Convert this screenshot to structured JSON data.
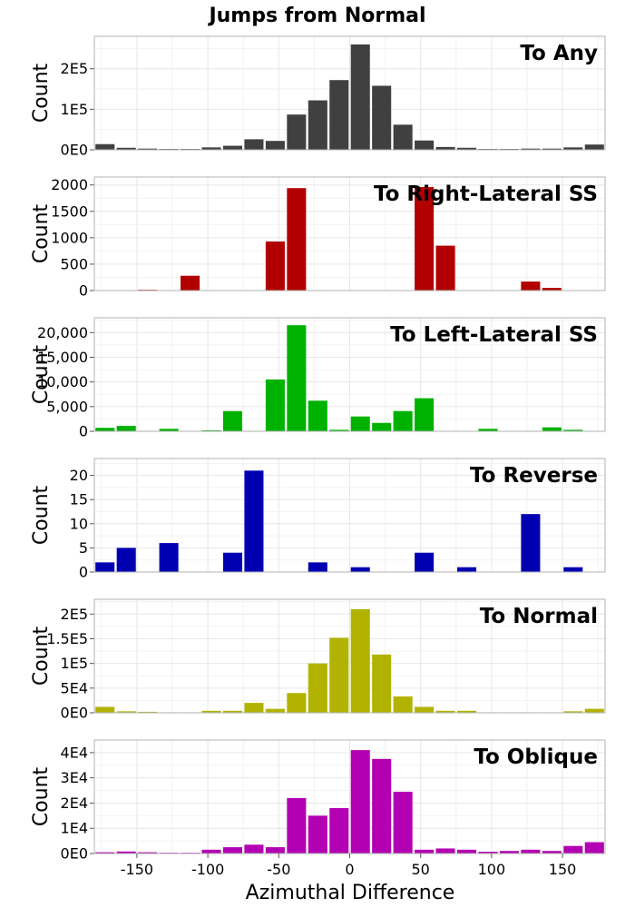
{
  "figure": {
    "title": "Jumps from Normal",
    "xlabel": "Azimuthal Difference",
    "x_ticks": [
      "-150",
      "-100",
      "-50",
      "0",
      "50",
      "100",
      "150"
    ]
  },
  "chart_data": [
    {
      "type": "bar",
      "panel_title": "To Any",
      "ylabel": "Count",
      "color": "#404040",
      "xlim": [
        -180,
        180
      ],
      "ylim": [
        0,
        280000
      ],
      "y_ticks": [
        0,
        100000,
        200000
      ],
      "y_tick_labels": [
        "0E0",
        "1E5",
        "2E5"
      ],
      "x": [
        -172.5,
        -157.5,
        -142.5,
        -127.5,
        -112.5,
        -97.5,
        -82.5,
        -67.5,
        -52.5,
        -37.5,
        -22.5,
        -7.5,
        7.5,
        22.5,
        37.5,
        52.5,
        67.5,
        82.5,
        97.5,
        112.5,
        127.5,
        142.5,
        157.5,
        172.5
      ],
      "values": [
        14000,
        5000,
        3000,
        2000,
        2000,
        6000,
        10000,
        26000,
        22000,
        87000,
        122000,
        172000,
        260000,
        158000,
        62000,
        23000,
        7000,
        5000,
        2000,
        2000,
        3000,
        3000,
        6000,
        13000
      ]
    },
    {
      "type": "bar",
      "panel_title": "To Right-Lateral SS",
      "ylabel": "Count",
      "color": "#b20000",
      "xlim": [
        -180,
        180
      ],
      "ylim": [
        0,
        2150
      ],
      "y_ticks": [
        0,
        500,
        1000,
        1500,
        2000
      ],
      "y_tick_labels": [
        "0",
        "500",
        "1000",
        "1500",
        "2000"
      ],
      "x": [
        -172.5,
        -157.5,
        -142.5,
        -127.5,
        -112.5,
        -97.5,
        -82.5,
        -67.5,
        -52.5,
        -37.5,
        -22.5,
        -7.5,
        7.5,
        22.5,
        37.5,
        52.5,
        67.5,
        82.5,
        97.5,
        112.5,
        127.5,
        142.5,
        157.5,
        172.5
      ],
      "values": [
        0,
        0,
        15,
        0,
        280,
        0,
        0,
        0,
        930,
        1940,
        0,
        0,
        0,
        0,
        0,
        1960,
        850,
        0,
        0,
        0,
        170,
        50,
        0,
        0
      ]
    },
    {
      "type": "bar",
      "panel_title": "To Left-Lateral SS",
      "ylabel": "Count",
      "color": "#00b200",
      "xlim": [
        -180,
        180
      ],
      "ylim": [
        0,
        23000
      ],
      "y_ticks": [
        0,
        5000,
        10000,
        15000,
        20000
      ],
      "y_tick_labels": [
        "0",
        "5,000",
        "10,000",
        "15,000",
        "20,000"
      ],
      "x": [
        -172.5,
        -157.5,
        -142.5,
        -127.5,
        -112.5,
        -97.5,
        -82.5,
        -67.5,
        -52.5,
        -37.5,
        -22.5,
        -7.5,
        7.5,
        22.5,
        37.5,
        52.5,
        67.5,
        82.5,
        97.5,
        112.5,
        127.5,
        142.5,
        157.5,
        172.5
      ],
      "values": [
        700,
        1100,
        100,
        500,
        0,
        200,
        4100,
        100,
        10500,
        21500,
        6200,
        300,
        3000,
        1700,
        4100,
        6700,
        0,
        0,
        500,
        0,
        100,
        800,
        300,
        0
      ]
    },
    {
      "type": "bar",
      "panel_title": "To Reverse",
      "ylabel": "Count",
      "color": "#0000b2",
      "xlim": [
        -180,
        180
      ],
      "ylim": [
        0,
        23.5
      ],
      "y_ticks": [
        0,
        5,
        10,
        15,
        20
      ],
      "y_tick_labels": [
        "0",
        "5",
        "10",
        "15",
        "20"
      ],
      "x": [
        -172.5,
        -157.5,
        -142.5,
        -127.5,
        -112.5,
        -97.5,
        -82.5,
        -67.5,
        -52.5,
        -37.5,
        -22.5,
        -7.5,
        7.5,
        22.5,
        37.5,
        52.5,
        67.5,
        82.5,
        97.5,
        112.5,
        127.5,
        142.5,
        157.5,
        172.5
      ],
      "values": [
        2,
        5,
        0,
        6,
        0,
        0,
        4,
        21,
        0,
        0,
        2,
        0,
        1,
        0,
        0,
        4,
        0,
        1,
        0,
        0,
        12,
        0,
        1,
        0
      ]
    },
    {
      "type": "bar",
      "panel_title": "To Normal",
      "ylabel": "Count",
      "color": "#b2b200",
      "xlim": [
        -180,
        180
      ],
      "ylim": [
        0,
        230000
      ],
      "y_ticks": [
        0,
        50000,
        100000,
        150000,
        200000
      ],
      "y_tick_labels": [
        "0E0",
        "5E4",
        "1E5",
        "1.5E5",
        "2E5"
      ],
      "x": [
        -172.5,
        -157.5,
        -142.5,
        -127.5,
        -112.5,
        -97.5,
        -82.5,
        -67.5,
        -52.5,
        -37.5,
        -22.5,
        -7.5,
        7.5,
        22.5,
        37.5,
        52.5,
        67.5,
        82.5,
        97.5,
        112.5,
        127.5,
        142.5,
        157.5,
        172.5
      ],
      "values": [
        12000,
        3000,
        2000,
        1000,
        1000,
        4000,
        4000,
        20000,
        8000,
        40000,
        100000,
        152000,
        210000,
        118000,
        33000,
        12000,
        4000,
        4000,
        1000,
        1000,
        1000,
        1000,
        3000,
        8000
      ]
    },
    {
      "type": "bar",
      "panel_title": "To Oblique",
      "ylabel": "Count",
      "color": "#b200b2",
      "xlim": [
        -180,
        180
      ],
      "ylim": [
        0,
        45000
      ],
      "y_ticks": [
        0,
        10000,
        20000,
        30000,
        40000
      ],
      "y_tick_labels": [
        "0E0",
        "1E4",
        "2E4",
        "3E4",
        "4E4"
      ],
      "x": [
        -172.5,
        -157.5,
        -142.5,
        -127.5,
        -112.5,
        -97.5,
        -82.5,
        -67.5,
        -52.5,
        -37.5,
        -22.5,
        -7.5,
        7.5,
        22.5,
        37.5,
        52.5,
        67.5,
        82.5,
        97.5,
        112.5,
        127.5,
        142.5,
        157.5,
        172.5
      ],
      "values": [
        500,
        800,
        500,
        300,
        300,
        1500,
        2500,
        3500,
        2500,
        22000,
        15000,
        18000,
        41000,
        37500,
        24500,
        1500,
        2000,
        1500,
        700,
        1000,
        1500,
        1000,
        3000,
        4500
      ]
    }
  ]
}
